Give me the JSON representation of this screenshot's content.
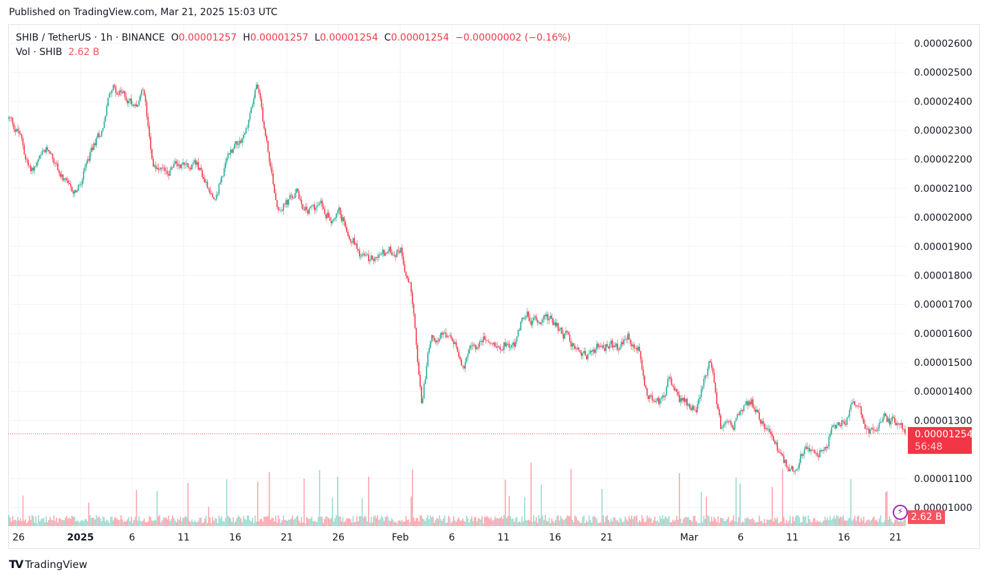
{
  "published": "Published on TradingView.com, Mar 21, 2025 15:03 UTC",
  "legend": {
    "symbol": "SHIB / TetherUS · 1h · BINANCE",
    "o_label": "O",
    "o": "0.00001257",
    "h_label": "H",
    "h": "0.00001257",
    "l_label": "L",
    "l": "0.00001254",
    "c_label": "C",
    "c": "0.00001254",
    "change": "−0.00000002 (−0.16%)",
    "vol_label": "Vol · SHIB",
    "vol": "2.62 B"
  },
  "price_tag": {
    "price": "0.00001254",
    "countdown": "56:48"
  },
  "volume_tag": "2.62 B",
  "logo": "TradingView",
  "colors": {
    "up": "#22ab94",
    "down": "#f23645",
    "grid": "#f0f3fa"
  },
  "chart_data": {
    "type": "candlestick",
    "symbol": "SHIBUSDT",
    "interval": "1h",
    "start": "2024-12-25",
    "daily_close_approx": [
      23.4,
      22.9,
      21.6,
      21.9,
      22.3,
      21.5,
      20.7,
      21.1,
      22.2,
      23.0,
      24.6,
      24.2,
      24.0,
      24.3,
      22.0,
      21.4,
      21.8,
      21.9,
      22.0,
      21.3,
      20.8,
      21.8,
      22.6,
      23.0,
      24.6,
      22.5,
      20.5,
      20.5,
      20.8,
      20.2,
      20.4,
      20.2,
      20.1,
      19.6,
      18.9,
      18.4,
      18.7,
      18.8,
      19.0,
      17.5,
      13.5,
      16.2,
      16.0,
      15.6,
      15.0,
      15.4,
      15.8,
      15.6,
      15.8,
      15.6,
      16.7,
      16.5,
      16.8,
      16.2,
      15.9,
      15.6,
      15.3,
      15.5,
      15.6,
      15.4,
      15.8,
      15.4,
      13.8,
      13.6,
      14.4,
      13.6,
      13.5,
      13.7,
      14.9,
      12.7,
      12.9,
      13.3,
      13.5,
      13.0,
      12.6,
      11.5,
      11.3,
      12.0,
      12.1,
      12.0,
      12.9,
      13.0,
      13.5,
      12.8,
      12.5,
      12.9,
      12.9,
      12.54
    ],
    "value_unit": "×0.000001 USDT",
    "last_price": "0.00001254",
    "y_ticks": [
      "0.00002600",
      "0.00002500",
      "0.00002400",
      "0.00002300",
      "0.00002200",
      "0.00002100",
      "0.00002000",
      "0.00001900",
      "0.00001800",
      "0.00001700",
      "0.00001600",
      "0.00001500",
      "0.00001400",
      "0.00001300",
      "0.00001100",
      "0.00001000"
    ],
    "y_tick_values": [
      26,
      25,
      24,
      23,
      22,
      21,
      20,
      19,
      18,
      17,
      16,
      15,
      14,
      13,
      11,
      10
    ],
    "x_ticks": [
      "26",
      "2025",
      "6",
      "11",
      "16",
      "21",
      "26",
      "Feb",
      "6",
      "11",
      "16",
      "21",
      "Mar",
      "6",
      "11",
      "16",
      "21"
    ],
    "x_tick_days": [
      1,
      7,
      12,
      17,
      22,
      27,
      32,
      38,
      43,
      48,
      53,
      58,
      66,
      71,
      76,
      81,
      86
    ],
    "ylim": [
      9.5,
      26.7
    ],
    "grid": true
  }
}
